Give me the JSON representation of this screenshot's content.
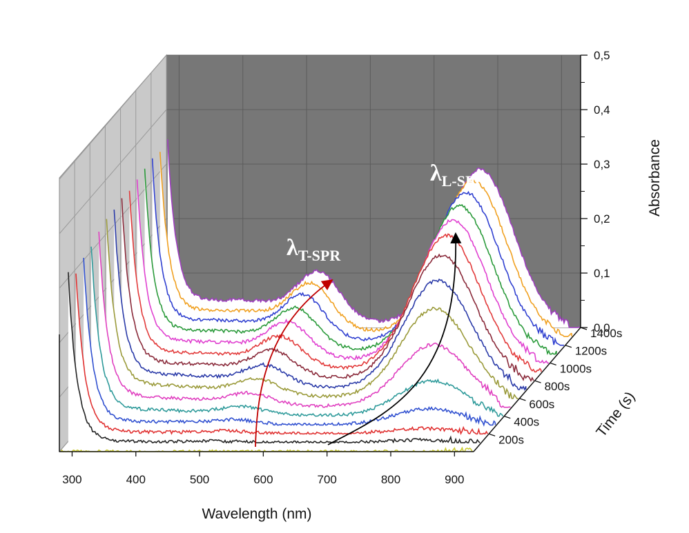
{
  "chart_data": {
    "type": "line",
    "subtype": "3d-waterfall",
    "xlabel": "Wavelength (nm)",
    "ylabel": "Absorbance",
    "zlabel": "Time (s)",
    "xlim": [
      280,
      930
    ],
    "ylim": [
      0,
      0.5
    ],
    "x_ticks": [
      "300",
      "400",
      "500",
      "600",
      "700",
      "800",
      "900"
    ],
    "y_ticks": [
      "0,0",
      "0,1",
      "0,2",
      "0,3",
      "0,4",
      "0,5"
    ],
    "z_ticks": [
      "200s",
      "400s",
      "600s",
      "800s",
      "1000s",
      "1200s",
      "1400s"
    ],
    "grid": true,
    "annotations": {
      "t_spr_lambda": "λ",
      "t_spr_sub": "T-SPR",
      "l_spr_lambda": "λ",
      "l_spr_sub": "L-SPR"
    },
    "series": [
      {
        "time": 0,
        "color": "#cccc33",
        "t_peak": 0.0,
        "l_peak": 0.0,
        "uv": 0.01
      },
      {
        "time": 100,
        "color": "#222222",
        "t_peak": 0.002,
        "l_peak": 0.005,
        "uv": 0.2
      },
      {
        "time": 200,
        "color": "#e03030",
        "t_peak": 0.004,
        "l_peak": 0.01,
        "uv": 0.19
      },
      {
        "time": 300,
        "color": "#3050d0",
        "t_peak": 0.007,
        "l_peak": 0.03,
        "uv": 0.195
      },
      {
        "time": 400,
        "color": "#2e9a9a",
        "t_peak": 0.012,
        "l_peak": 0.065,
        "uv": 0.195
      },
      {
        "time": 500,
        "color": "#e040c0",
        "t_peak": 0.018,
        "l_peak": 0.115,
        "uv": 0.195
      },
      {
        "time": 600,
        "color": "#9a9a3a",
        "t_peak": 0.025,
        "l_peak": 0.165,
        "uv": 0.195
      },
      {
        "time": 700,
        "color": "#2a3aa8",
        "t_peak": 0.032,
        "l_peak": 0.2,
        "uv": 0.195
      },
      {
        "time": 800,
        "color": "#8a2a3a",
        "t_peak": 0.04,
        "l_peak": 0.23,
        "uv": 0.195
      },
      {
        "time": 900,
        "color": "#e23a3a",
        "t_peak": 0.047,
        "l_peak": 0.25,
        "uv": 0.195
      },
      {
        "time": 1000,
        "color": "#e040d0",
        "t_peak": 0.055,
        "l_peak": 0.262,
        "uv": 0.195
      },
      {
        "time": 1100,
        "color": "#2a9a3a",
        "t_peak": 0.062,
        "l_peak": 0.272,
        "uv": 0.195
      },
      {
        "time": 1200,
        "color": "#3040d0",
        "t_peak": 0.068,
        "l_peak": 0.28,
        "uv": 0.195
      },
      {
        "time": 1300,
        "color": "#f0a020",
        "t_peak": 0.072,
        "l_peak": 0.285,
        "uv": 0.195
      },
      {
        "time": 1400,
        "color": "#a040c0",
        "t_peak": 0.076,
        "l_peak": 0.29,
        "uv": 0.195
      }
    ]
  }
}
